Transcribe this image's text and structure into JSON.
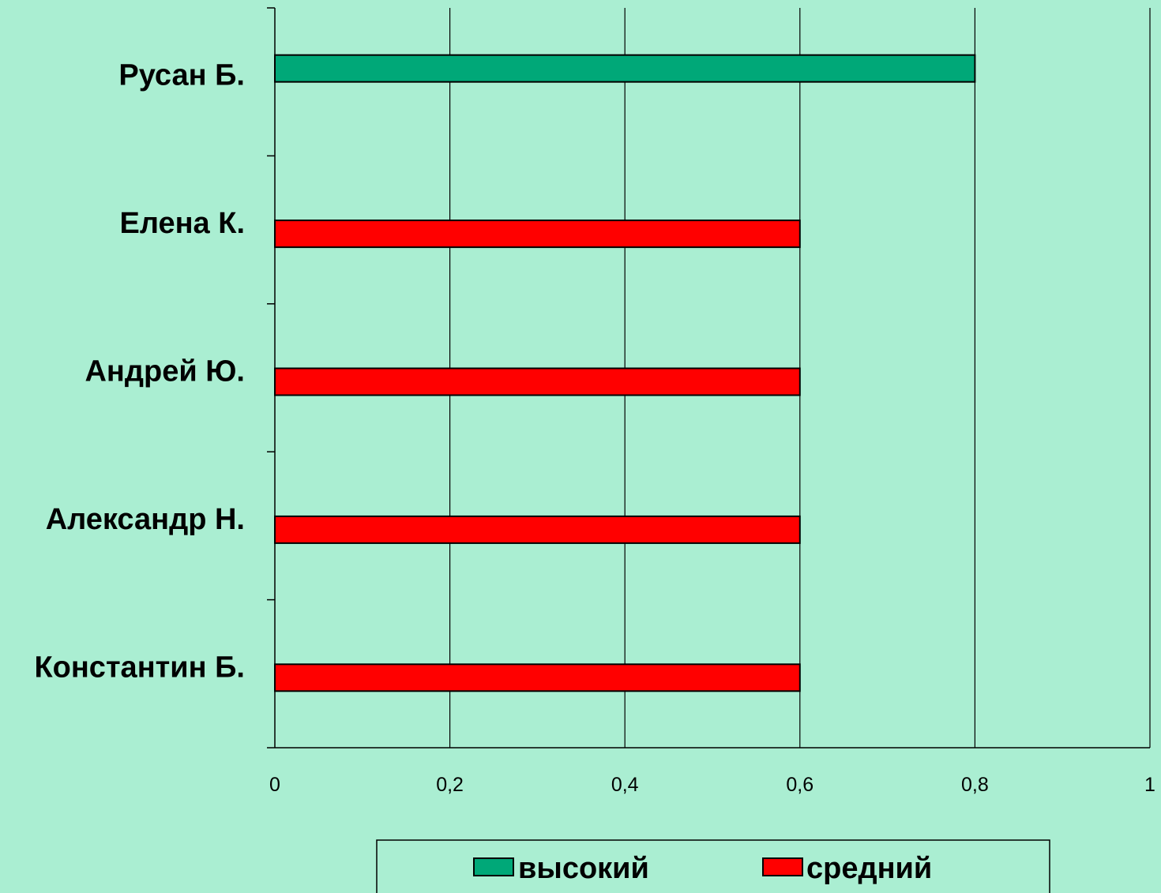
{
  "chart_data": {
    "type": "bar",
    "orientation": "horizontal",
    "categories": [
      "Русан Б.",
      "Елена К.",
      "Андрей Ю.",
      "Александр Н.",
      "Константин Б."
    ],
    "series": [
      {
        "name": "высокий",
        "color": "#00a878",
        "values": [
          0.8,
          null,
          null,
          null,
          null
        ]
      },
      {
        "name": "средний",
        "color": "#ff0000",
        "values": [
          null,
          0.6,
          0.6,
          0.6,
          0.6
        ]
      }
    ],
    "x_ticks": [
      "0",
      "0,2",
      "0,4",
      "0,6",
      "0,8",
      "1"
    ],
    "xlim": [
      0,
      1
    ],
    "grid": "vertical",
    "legend": "bottom",
    "colors": {
      "background": "#aaeed2",
      "axis": "#000000"
    }
  }
}
